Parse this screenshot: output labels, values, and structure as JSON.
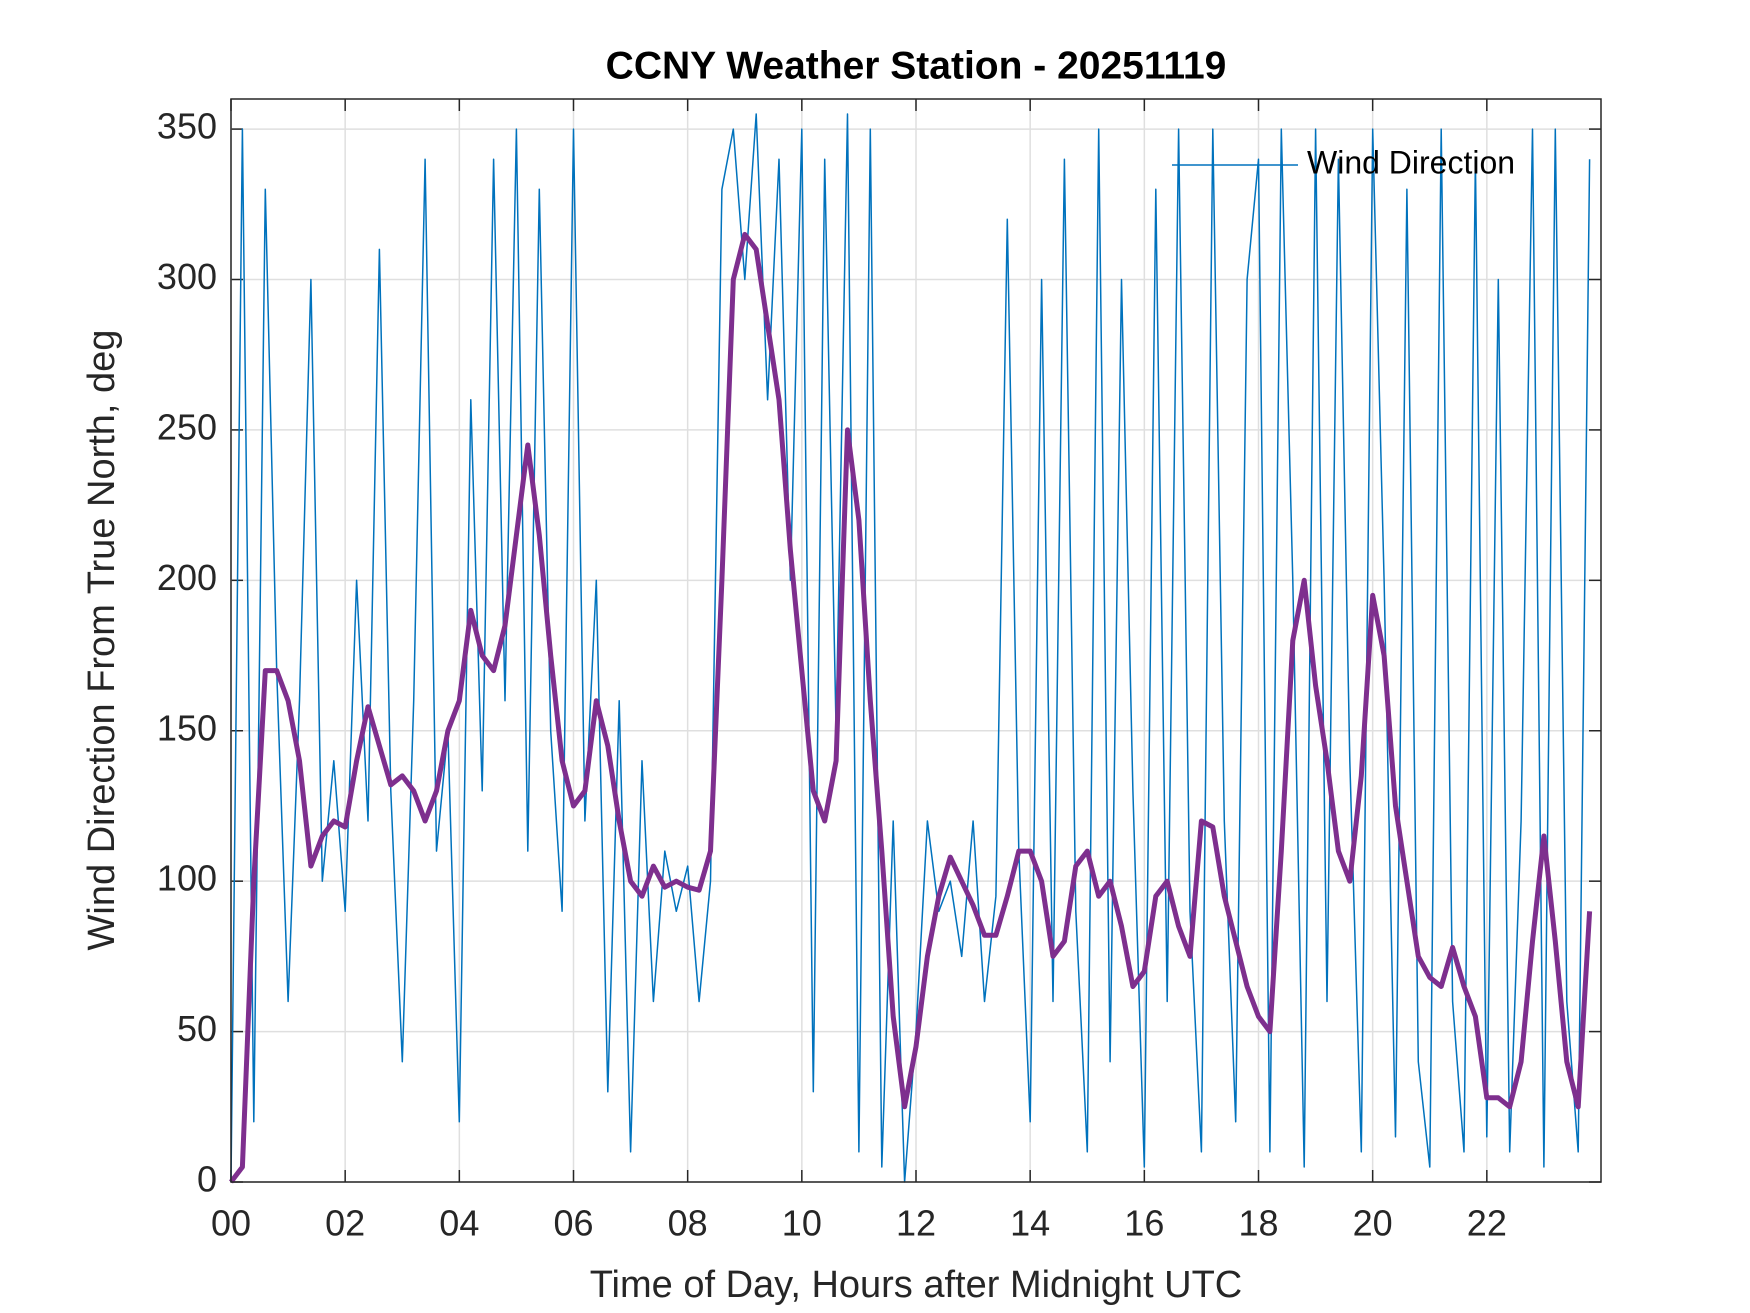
{
  "chart_data": {
    "type": "line",
    "title": "CCNY Weather Station - 20251119",
    "xlabel": "Time of Day, Hours after Midnight UTC",
    "ylabel": "Wind Direction From True North, deg",
    "x": [
      0,
      0.2,
      0.4,
      0.6,
      0.8,
      1,
      1.2,
      1.4,
      1.6,
      1.8,
      2,
      2.2,
      2.4,
      2.6,
      2.8,
      3,
      3.2,
      3.4,
      3.6,
      3.8,
      4,
      4.2,
      4.4,
      4.6,
      4.8,
      5,
      5.2,
      5.4,
      5.6,
      5.8,
      6,
      6.2,
      6.4,
      6.6,
      6.8,
      7,
      7.2,
      7.4,
      7.6,
      7.8,
      8,
      8.2,
      8.4,
      8.6,
      8.8,
      9,
      9.2,
      9.4,
      9.6,
      9.8,
      10,
      10.2,
      10.4,
      10.6,
      10.8,
      11,
      11.2,
      11.4,
      11.6,
      11.8,
      12,
      12.2,
      12.4,
      12.6,
      12.8,
      13,
      13.2,
      13.4,
      13.6,
      13.8,
      14,
      14.2,
      14.4,
      14.6,
      14.8,
      15,
      15.2,
      15.4,
      15.6,
      15.8,
      16,
      16.2,
      16.4,
      16.6,
      16.8,
      17,
      17.2,
      17.4,
      17.6,
      17.8,
      18,
      18.2,
      18.4,
      18.6,
      18.8,
      19,
      19.2,
      19.4,
      19.6,
      19.8,
      20,
      20.2,
      20.4,
      20.6,
      20.8,
      21,
      21.2,
      21.4,
      21.6,
      21.8,
      22,
      22.2,
      22.4,
      22.6,
      22.8,
      23,
      23.2,
      23.4,
      23.6,
      23.8
    ],
    "series": [
      {
        "name": "Wind Direction",
        "color": "#0072bd",
        "width": 1.5,
        "values": [
          0,
          350,
          20,
          330,
          170,
          60,
          160,
          300,
          100,
          140,
          90,
          200,
          120,
          310,
          130,
          40,
          160,
          340,
          110,
          150,
          20,
          260,
          130,
          340,
          160,
          350,
          110,
          330,
          150,
          90,
          350,
          120,
          200,
          30,
          160,
          10,
          140,
          60,
          110,
          90,
          105,
          60,
          100,
          330,
          350,
          300,
          355,
          260,
          340,
          200,
          350,
          30,
          340,
          150,
          355,
          10,
          350,
          5,
          120,
          0,
          50,
          120,
          90,
          100,
          75,
          120,
          60,
          95,
          320,
          110,
          20,
          300,
          60,
          340,
          90,
          10,
          350,
          40,
          300,
          130,
          5,
          330,
          60,
          350,
          90,
          10,
          350,
          120,
          20,
          300,
          340,
          10,
          350,
          200,
          5,
          350,
          60,
          340,
          140,
          10,
          350,
          200,
          15,
          330,
          40,
          5,
          350,
          60,
          10,
          340,
          15,
          300,
          10,
          120,
          350,
          5,
          350,
          60,
          10,
          340
        ]
      },
      {
        "color": "#7e2f8e",
        "width": 5,
        "values": [
          0,
          5,
          100,
          170,
          170,
          160,
          140,
          105,
          115,
          120,
          118,
          140,
          158,
          145,
          132,
          135,
          130,
          120,
          130,
          150,
          160,
          190,
          175,
          170,
          185,
          215,
          245,
          215,
          175,
          140,
          125,
          130,
          160,
          145,
          120,
          100,
          95,
          105,
          98,
          100,
          98,
          97,
          110,
          200,
          300,
          315,
          310,
          285,
          260,
          210,
          170,
          130,
          120,
          140,
          250,
          220,
          160,
          110,
          55,
          25,
          45,
          75,
          95,
          108,
          100,
          92,
          82,
          82,
          95,
          110,
          110,
          100,
          75,
          80,
          105,
          110,
          95,
          100,
          85,
          65,
          70,
          95,
          100,
          85,
          75,
          120,
          118,
          95,
          80,
          65,
          55,
          50,
          110,
          180,
          200,
          165,
          140,
          110,
          100,
          135,
          195,
          175,
          125,
          100,
          75,
          68,
          65,
          78,
          65,
          55,
          28,
          28,
          25,
          40,
          80,
          115,
          80,
          40,
          25,
          90
        ]
      }
    ],
    "xlim": [
      0,
      24
    ],
    "xticks": [
      {
        "value": 0,
        "label": "00"
      },
      {
        "value": 2,
        "label": "02"
      },
      {
        "value": 4,
        "label": "04"
      },
      {
        "value": 6,
        "label": "06"
      },
      {
        "value": 8,
        "label": "08"
      },
      {
        "value": 10,
        "label": "10"
      },
      {
        "value": 12,
        "label": "12"
      },
      {
        "value": 14,
        "label": "14"
      },
      {
        "value": 16,
        "label": "16"
      },
      {
        "value": 18,
        "label": "18"
      },
      {
        "value": 20,
        "label": "20"
      },
      {
        "value": 22,
        "label": "22"
      }
    ],
    "ylim": [
      0,
      360
    ],
    "yticks": [
      0,
      50,
      100,
      150,
      200,
      250,
      300,
      350
    ],
    "grid": true,
    "legend": "upper right"
  }
}
